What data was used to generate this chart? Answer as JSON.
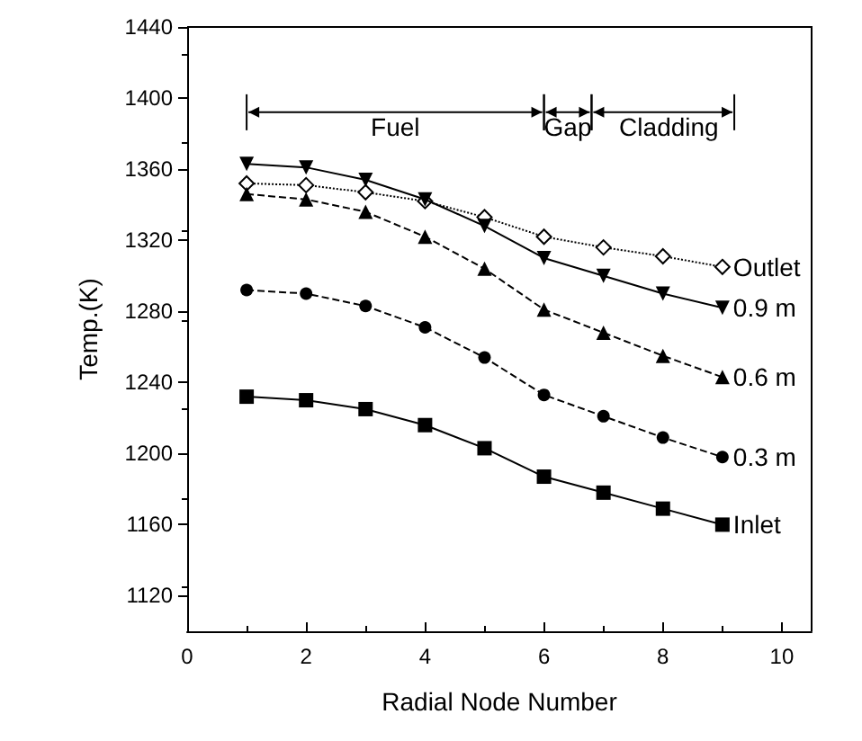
{
  "chart_data": {
    "type": "line",
    "xlabel": "Radial Node Number",
    "ylabel": "Temp.(K)",
    "x": [
      1,
      2,
      3,
      4,
      5,
      6,
      7,
      8,
      9
    ],
    "xlim": [
      0,
      10.5
    ],
    "xticks": [
      0,
      2,
      4,
      6,
      8,
      10
    ],
    "ylim": [
      1100,
      1440
    ],
    "yticks": [
      1120,
      1160,
      1200,
      1240,
      1280,
      1320,
      1360,
      1400,
      1440
    ],
    "grid": false,
    "legend": false,
    "series": [
      {
        "name": "Outlet",
        "color": "#000000",
        "marker": "diamond",
        "line_style": "dotted",
        "values": [
          1352,
          1351,
          1347,
          1342,
          1333,
          1322,
          1316,
          1311,
          1305
        ]
      },
      {
        "name": "0.9 m",
        "color": "#000000",
        "marker": "triangle-down",
        "line_style": "solid",
        "values": [
          1363,
          1361,
          1354,
          1343,
          1328,
          1310,
          1300,
          1290,
          1282
        ]
      },
      {
        "name": "0.6 m",
        "color": "#000000",
        "marker": "triangle",
        "line_style": "dashed",
        "values": [
          1346,
          1343,
          1336,
          1322,
          1304,
          1281,
          1268,
          1255,
          1243
        ]
      },
      {
        "name": "0.3 m",
        "color": "#000000",
        "marker": "circle",
        "line_style": "dashed",
        "values": [
          1292,
          1290,
          1283,
          1271,
          1254,
          1233,
          1221,
          1209,
          1198
        ]
      },
      {
        "name": "Inlet",
        "color": "#000000",
        "marker": "square",
        "line_style": "solid",
        "values": [
          1232,
          1230,
          1225,
          1216,
          1203,
          1187,
          1178,
          1169,
          1160
        ]
      }
    ],
    "annotations": [
      "Fuel",
      "Gap",
      "Cladding"
    ]
  }
}
